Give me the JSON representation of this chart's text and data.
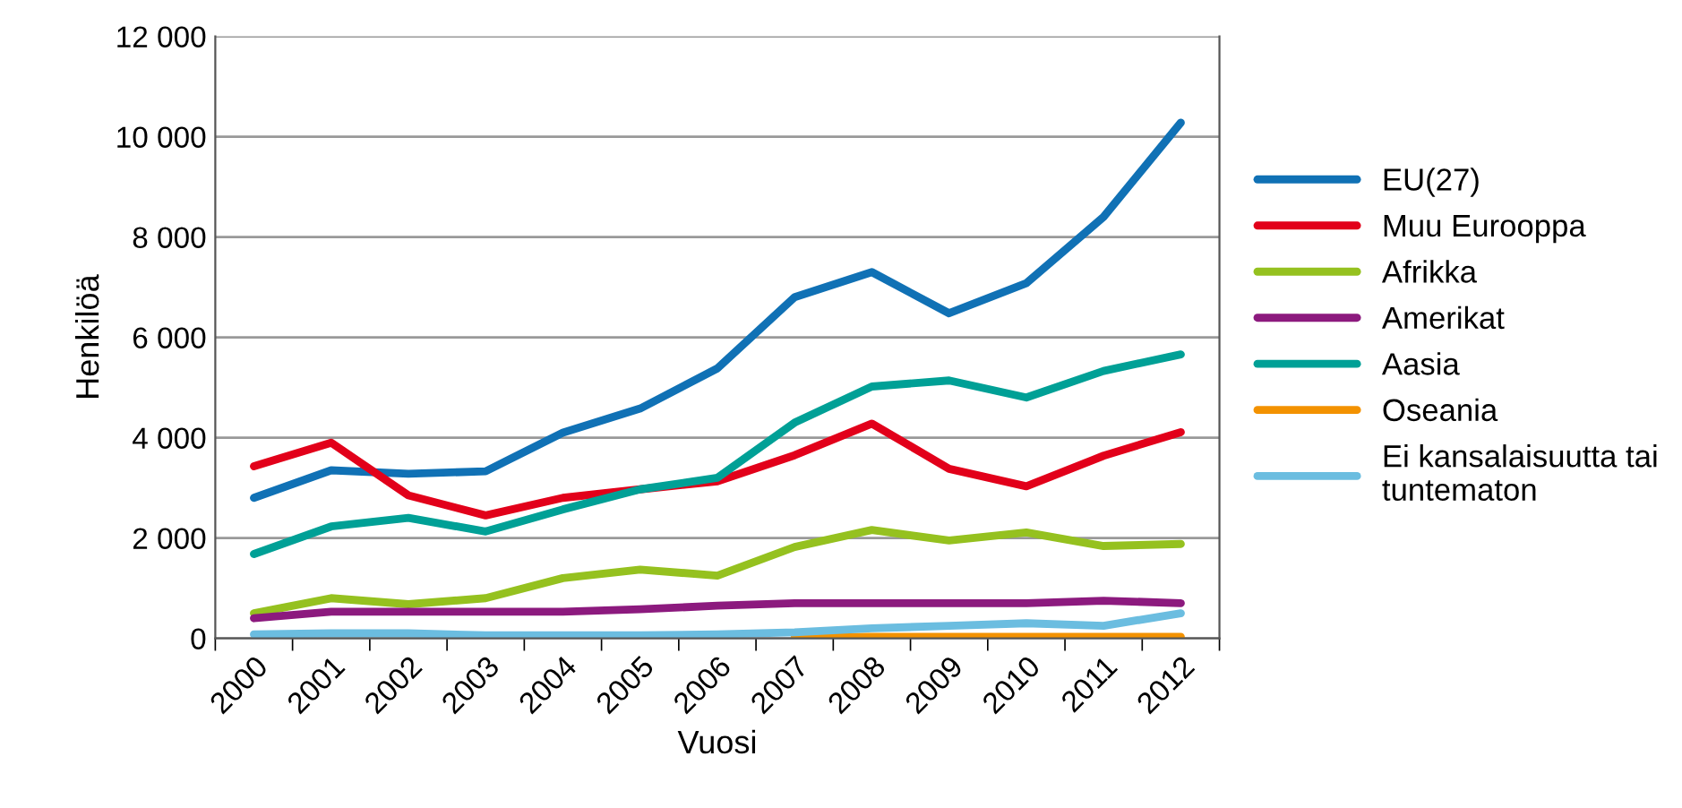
{
  "chart_data": {
    "type": "line",
    "xlabel": "Vuosi",
    "ylabel": "Henkilöä",
    "categories": [
      "2000",
      "2001",
      "2002",
      "2003",
      "2004",
      "2005",
      "2006",
      "2007",
      "2008",
      "2009",
      "2010",
      "2011",
      "2012"
    ],
    "ylim": [
      0,
      12000
    ],
    "yticks": [
      {
        "value": 0,
        "label": "0"
      },
      {
        "value": 2000,
        "label": "2 000"
      },
      {
        "value": 4000,
        "label": "4 000"
      },
      {
        "value": 6000,
        "label": "6 000"
      },
      {
        "value": 8000,
        "label": "8 000"
      },
      {
        "value": 10000,
        "label": "10 000"
      },
      {
        "value": 12000,
        "label": "12 000"
      }
    ],
    "grid": "y",
    "legend": "right",
    "marker": "none",
    "line_style": "solid",
    "series": [
      {
        "name": "EU(27)",
        "color": "#1071b5",
        "values": [
          2800,
          3350,
          3280,
          3330,
          4100,
          4580,
          5380,
          6800,
          7300,
          6480,
          7080,
          8400,
          10280
        ]
      },
      {
        "name": "Muu Eurooppa",
        "color": "#e2001a",
        "values": [
          3430,
          3900,
          2850,
          2450,
          2800,
          2970,
          3130,
          3650,
          4280,
          3380,
          3030,
          3640,
          4110
        ]
      },
      {
        "name": "Afrikka",
        "color": "#95c11f",
        "values": [
          500,
          800,
          680,
          800,
          1200,
          1370,
          1250,
          1820,
          2160,
          1950,
          2110,
          1840,
          1880
        ]
      },
      {
        "name": "Amerikat",
        "color": "#8c1a7e",
        "values": [
          400,
          530,
          530,
          530,
          530,
          580,
          650,
          700,
          700,
          700,
          700,
          750,
          700
        ]
      },
      {
        "name": "Aasia",
        "color": "#00a096",
        "values": [
          1680,
          2230,
          2400,
          2130,
          2570,
          2970,
          3200,
          4300,
          5020,
          5140,
          4800,
          5330,
          5660
        ]
      },
      {
        "name": "Oseania",
        "color": "#f39200",
        "values": [
          null,
          null,
          null,
          null,
          null,
          null,
          null,
          20,
          30,
          30,
          30,
          30,
          30
        ]
      },
      {
        "name": "Ei kansalaisuutta tai tuntematon",
        "color": "#6bbde0",
        "values": [
          80,
          100,
          100,
          60,
          60,
          60,
          80,
          120,
          200,
          250,
          300,
          250,
          500
        ]
      }
    ]
  }
}
